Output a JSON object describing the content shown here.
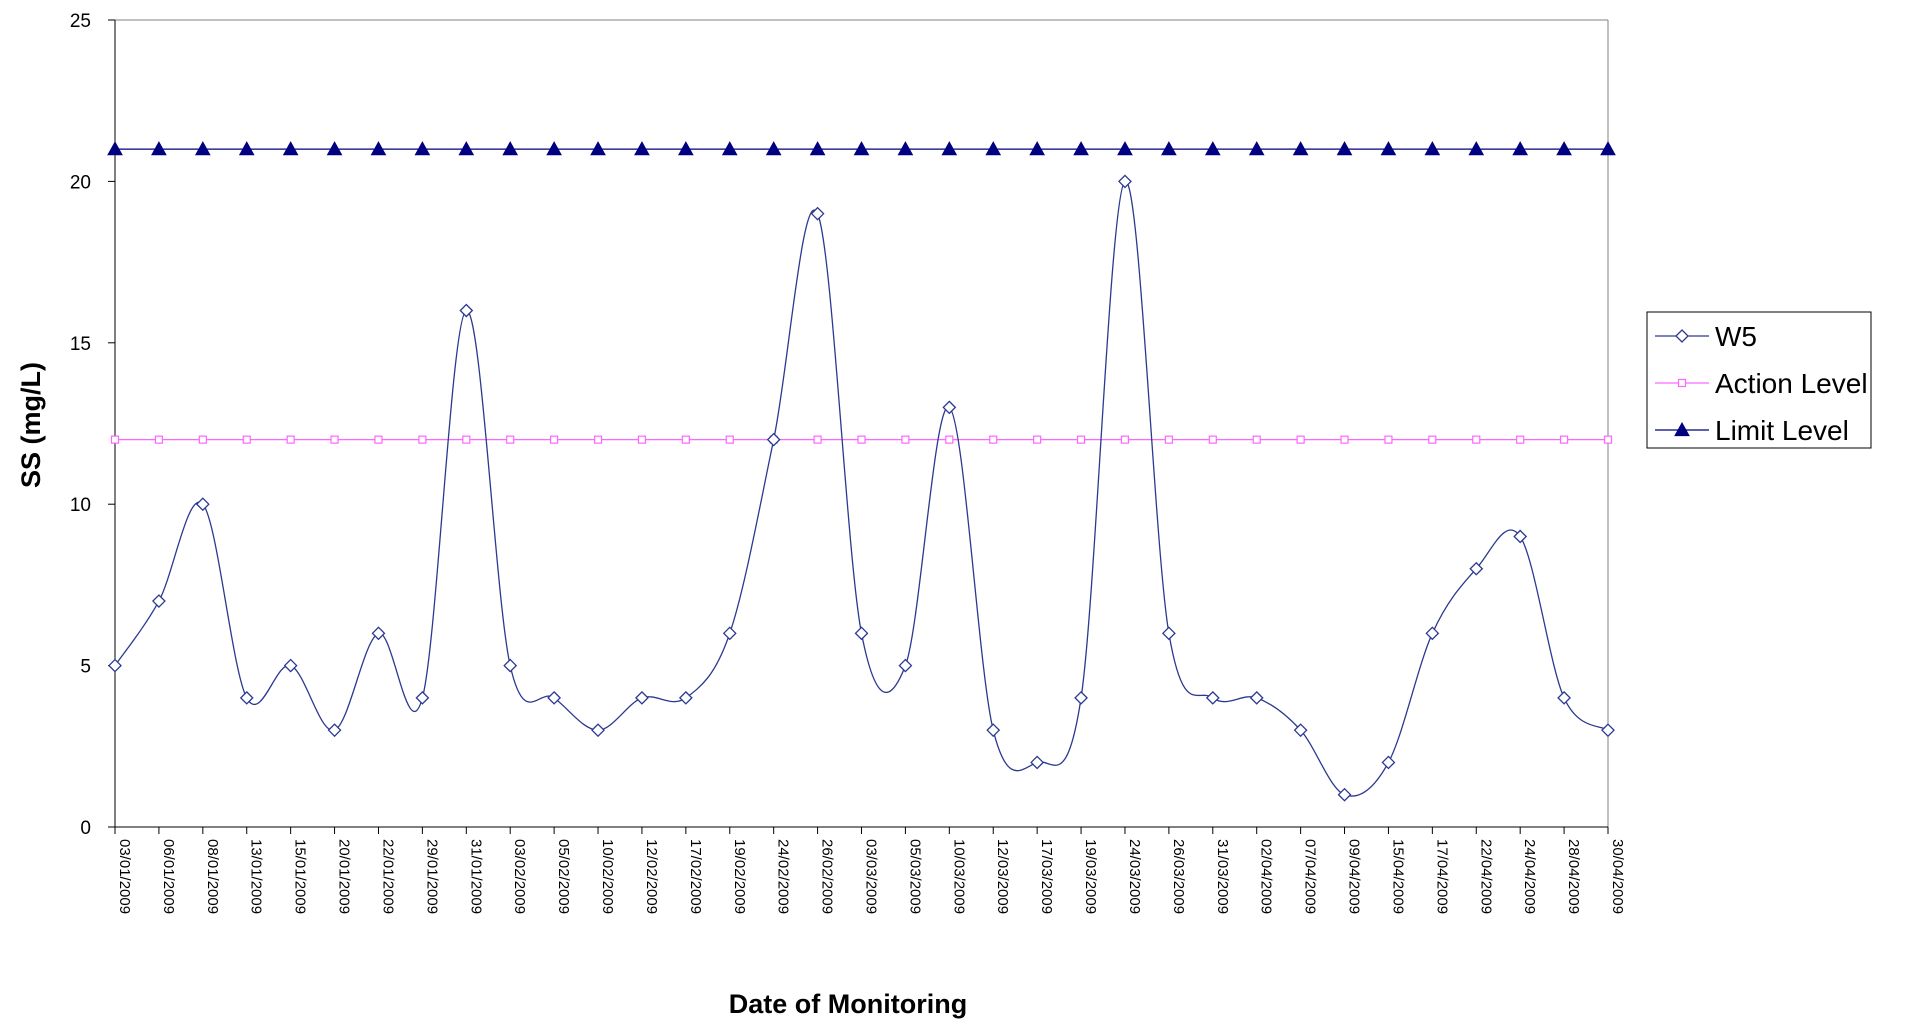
{
  "chart_data": {
    "type": "line",
    "xlabel": "Date of Monitoring",
    "ylabel": "SS (mg/L)",
    "ylim": [
      0,
      25
    ],
    "yticks": [
      "0",
      "5",
      "10",
      "15",
      "20",
      "25"
    ],
    "grid": false,
    "legend_position": "right",
    "categories": [
      "03/01/2009",
      "06/01/2009",
      "08/01/2009",
      "13/01/2009",
      "15/01/2009",
      "20/01/2009",
      "22/01/2009",
      "29/01/2009",
      "31/01/2009",
      "03/02/2009",
      "05/02/2009",
      "10/02/2009",
      "12/02/2009",
      "17/02/2009",
      "19/02/2009",
      "24/02/2009",
      "26/02/2009",
      "03/03/2009",
      "05/03/2009",
      "10/03/2009",
      "12/03/2009",
      "17/03/2009",
      "19/03/2009",
      "24/03/2009",
      "26/03/2009",
      "31/03/2009",
      "02/04/2009",
      "07/04/2009",
      "09/04/2009",
      "15/04/2009",
      "17/04/2009",
      "22/04/2009",
      "24/04/2009",
      "28/04/2009",
      "30/04/2009"
    ],
    "series": [
      {
        "name": "W5",
        "color": "#2B3990",
        "marker": "diamond",
        "smooth": true,
        "values": [
          5,
          7,
          10,
          4,
          5,
          3,
          6,
          4,
          16,
          5,
          4,
          3,
          4,
          4,
          6,
          12,
          19,
          6,
          5,
          13,
          3,
          2,
          4,
          20,
          6,
          4,
          4,
          3,
          1,
          2,
          6,
          8,
          9,
          4,
          3
        ]
      },
      {
        "name": "Action Level",
        "color": "#FF66FF",
        "marker": "square",
        "smooth": false,
        "values": [
          12,
          12,
          12,
          12,
          12,
          12,
          12,
          12,
          12,
          12,
          12,
          12,
          12,
          12,
          12,
          12,
          12,
          12,
          12,
          12,
          12,
          12,
          12,
          12,
          12,
          12,
          12,
          12,
          12,
          12,
          12,
          12,
          12,
          12,
          12
        ]
      },
      {
        "name": "Limit Level",
        "color": "#000080",
        "marker": "triangle",
        "smooth": false,
        "values": [
          21,
          21,
          21,
          21,
          21,
          21,
          21,
          21,
          21,
          21,
          21,
          21,
          21,
          21,
          21,
          21,
          21,
          21,
          21,
          21,
          21,
          21,
          21,
          21,
          21,
          21,
          21,
          21,
          21,
          21,
          21,
          21,
          21,
          21,
          21
        ]
      }
    ]
  }
}
